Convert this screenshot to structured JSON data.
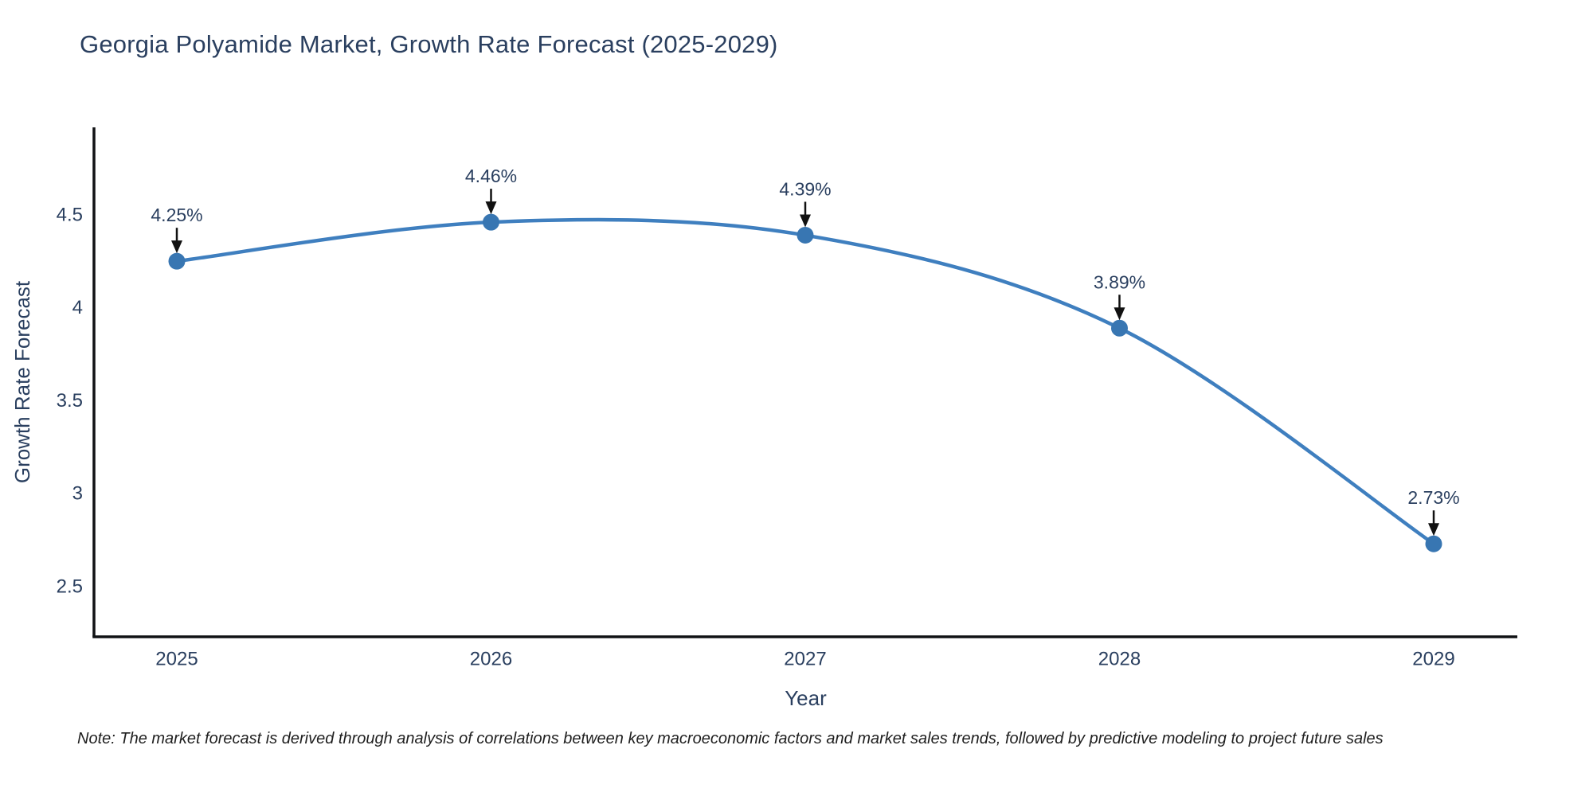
{
  "title": "Georgia Polyamide Market, Growth Rate Forecast (2025-2029)",
  "note": "Note: The market forecast is derived through analysis of correlations between key macroeconomic factors and market sales trends, followed by predictive modeling to project future sales",
  "chart_data": {
    "type": "line",
    "line_shape": "spline",
    "title": "Georgia Polyamide Market, Growth Rate Forecast (2025-2029)",
    "xlabel": "Year",
    "ylabel": "Growth Rate Forecast",
    "x": [
      2025,
      2026,
      2027,
      2028,
      2029
    ],
    "series": [
      {
        "name": "Growth Rate Forecast",
        "values": [
          4.25,
          4.46,
          4.39,
          3.89,
          2.73
        ]
      }
    ],
    "point_labels": [
      "4.25%",
      "4.46%",
      "4.39%",
      "3.89%",
      "2.73%"
    ],
    "xticks": [
      "2025",
      "2026",
      "2027",
      "2028",
      "2029"
    ],
    "yticks": [
      2.5,
      3,
      3.5,
      4,
      4.5
    ],
    "ylim": [
      2.23,
      4.97
    ],
    "grid": false,
    "legend": "none",
    "colors": {
      "line": "#3f7fbf",
      "marker": "#3876b2",
      "axis": "#101215",
      "text": "#2a3f5f",
      "annotation_arrow": "#111111",
      "background": "#ffffff"
    }
  }
}
